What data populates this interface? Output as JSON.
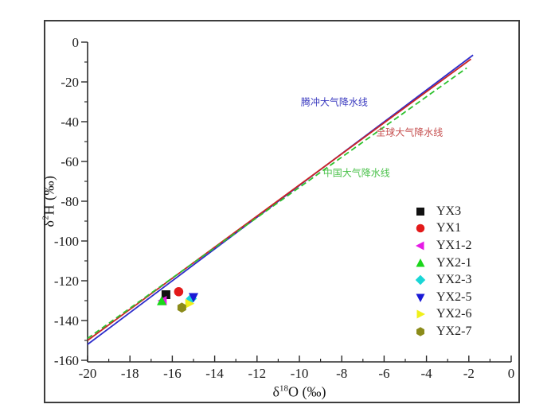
{
  "figure": {
    "background": "#ffffff",
    "border_color": "#3d3d3d",
    "axis_color": "#2b2b2b",
    "text_color": "#1c1c1c"
  },
  "chart_data": {
    "type": "scatter",
    "title": "",
    "xlabel": {
      "prefix": "δ",
      "sup": "18",
      "suffix": "O (‰)"
    },
    "ylabel": {
      "prefix": "δ",
      "sup": "2",
      "suffix": "H (‰)"
    },
    "xlim": [
      -20,
      0
    ],
    "ylim": [
      -160,
      0
    ],
    "x_major_ticks": [
      -20,
      -18,
      -16,
      -14,
      -12,
      -10,
      -8,
      -6,
      -4,
      -2,
      0
    ],
    "x_minor_step": 1,
    "y_major_ticks": [
      0,
      -20,
      -40,
      -60,
      -80,
      -100,
      -120,
      -140,
      -160
    ],
    "y_minor_step": 10,
    "grid": false,
    "legend_position": "inside-right-center",
    "lines": [
      {
        "name": "tengchong-lmwl",
        "label": "腾冲大气降水线",
        "color": "#2d2dcb",
        "label_color": "#3c3cc0",
        "style": "solid",
        "x1": -20,
        "y1": -152,
        "x2": -1.8,
        "y2": -6.5,
        "label_x": -8.35,
        "label_y": -30
      },
      {
        "name": "global-mwl",
        "label": "全球大气降水线",
        "color": "#cb2525",
        "label_color": "#c65050",
        "style": "solid",
        "x1": -20,
        "y1": -150,
        "x2": -1.9,
        "y2": -8.5,
        "label_x": -4.8,
        "label_y": -45
      },
      {
        "name": "china-mwl",
        "label": "中国大气降水线",
        "color": "#2ec22e",
        "label_color": "#4cc24c",
        "style": "dashed",
        "x1": -20,
        "y1": -149,
        "x2": -2.1,
        "y2": -13,
        "label_x": -7.3,
        "label_y": -65.6
      }
    ],
    "series": [
      {
        "name": "YX3",
        "marker": "square",
        "color": "#111111",
        "x": -16.3,
        "y": -127
      },
      {
        "name": "YX1",
        "marker": "circle",
        "color": "#e31a1a",
        "x": -15.7,
        "y": -125.5
      },
      {
        "name": "YX1-2",
        "marker": "triangle-left",
        "color": "#e61ae6",
        "x": -16.45,
        "y": -130
      },
      {
        "name": "YX2-1",
        "marker": "triangle-up",
        "color": "#1ad61a",
        "x": -16.5,
        "y": -130.3
      },
      {
        "name": "YX2-3",
        "marker": "diamond",
        "color": "#1ad6d6",
        "x": -15.1,
        "y": -129
      },
      {
        "name": "YX2-5",
        "marker": "triangle-down",
        "color": "#1a1ad6",
        "x": -15.0,
        "y": -128.2
      },
      {
        "name": "YX2-6",
        "marker": "triangle-right",
        "color": "#f0f01a",
        "x": -15.2,
        "y": -131.5
      },
      {
        "name": "YX2-7",
        "marker": "hexagon",
        "color": "#8b8b1a",
        "x": -15.55,
        "y": -133.5
      }
    ]
  }
}
